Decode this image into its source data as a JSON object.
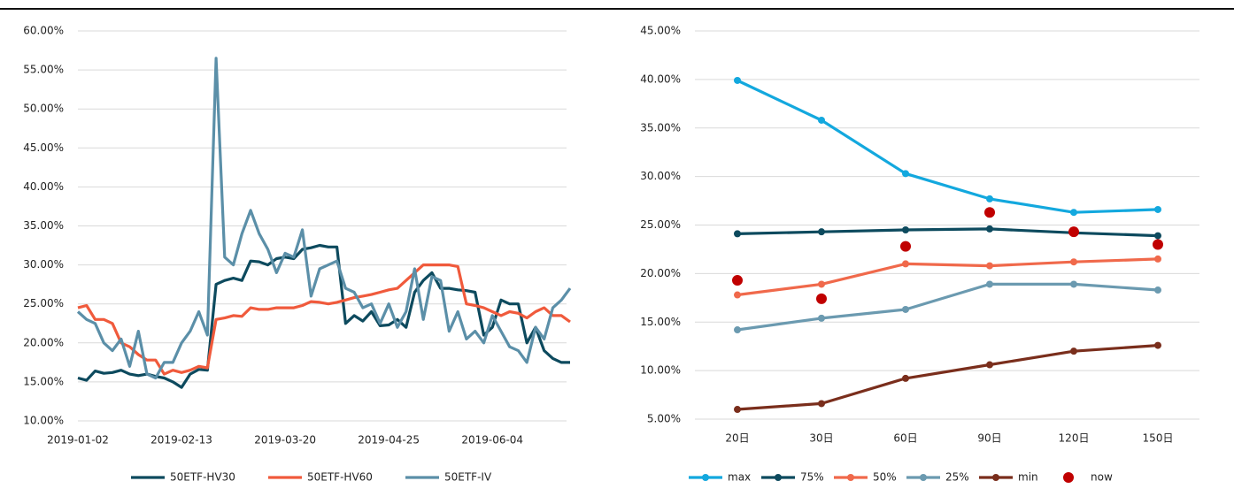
{
  "chart_data": [
    {
      "type": "line",
      "categories": [
        "2019-01-02",
        null,
        null,
        null,
        null,
        null,
        null,
        null,
        null,
        null,
        null,
        null,
        "2019-02-13",
        null,
        null,
        null,
        null,
        null,
        null,
        null,
        null,
        null,
        null,
        null,
        "2019-03-20",
        null,
        null,
        null,
        null,
        null,
        null,
        null,
        null,
        null,
        null,
        null,
        "2019-04-25",
        null,
        null,
        null,
        null,
        null,
        null,
        null,
        null,
        null,
        null,
        null,
        "2019-06-04",
        null,
        null,
        null,
        null,
        null,
        null,
        null,
        null,
        null
      ],
      "ylim": [
        10,
        60
      ],
      "yticks": [
        {
          "value": 10,
          "label": "10.00%"
        },
        {
          "value": 15,
          "label": "15.00%"
        },
        {
          "value": 20,
          "label": "20.00%"
        },
        {
          "value": 25,
          "label": "25.00%"
        },
        {
          "value": 30,
          "label": "30.00%"
        },
        {
          "value": 35,
          "label": "35.00%"
        },
        {
          "value": 40,
          "label": "40.00%"
        },
        {
          "value": 45,
          "label": "45.00%"
        },
        {
          "value": 50,
          "label": "50.00%"
        },
        {
          "value": 55,
          "label": "55.00%"
        },
        {
          "value": 60,
          "label": "60.00%"
        }
      ],
      "grid": true,
      "legend": "bottom",
      "series": [
        {
          "name": "50ETF-HV30",
          "color": "#0d4a5e",
          "values": [
            15.5,
            15.2,
            16.4,
            16.1,
            16.2,
            16.5,
            16.0,
            15.8,
            16.0,
            15.7,
            15.5,
            15.0,
            14.3,
            16.0,
            16.6,
            16.5,
            27.5,
            28.0,
            28.3,
            28.0,
            30.5,
            30.4,
            30.0,
            30.8,
            31.0,
            30.8,
            32.0,
            32.2,
            32.5,
            32.3,
            32.3,
            22.5,
            23.5,
            22.8,
            24.0,
            22.2,
            22.3,
            23.0,
            22.0,
            26.5,
            28.0,
            29.0,
            27.0,
            27.0,
            26.8,
            26.7,
            26.5,
            21.0,
            22.0,
            25.5,
            25.0,
            25.0,
            20.0,
            22.0,
            19.0,
            18.0,
            17.5,
            17.5
          ]
        },
        {
          "name": "50ETF-HV60",
          "color": "#f05a3c",
          "values": [
            24.5,
            24.8,
            23.0,
            23.0,
            22.5,
            20.0,
            19.5,
            18.5,
            17.8,
            17.8,
            16.0,
            16.5,
            16.2,
            16.5,
            17.0,
            16.8,
            23.0,
            23.2,
            23.5,
            23.4,
            24.5,
            24.3,
            24.3,
            24.5,
            24.5,
            24.5,
            24.8,
            25.3,
            25.2,
            25.0,
            25.2,
            25.5,
            25.8,
            26.0,
            26.2,
            26.5,
            26.8,
            27.0,
            28.0,
            29.0,
            30.0,
            30.0,
            30.0,
            30.0,
            29.8,
            25.0,
            24.8,
            24.5,
            24.0,
            23.5,
            24.0,
            23.8,
            23.2,
            24.0,
            24.5,
            23.5,
            23.5,
            22.7
          ]
        },
        {
          "name": "50ETF-IV",
          "color": "#5b8fa8",
          "values": [
            24.0,
            23.0,
            22.5,
            20.0,
            19.0,
            20.5,
            17.0,
            21.5,
            16.0,
            15.5,
            17.5,
            17.5,
            20.0,
            21.5,
            24.0,
            21.0,
            56.5,
            31.0,
            30.0,
            34.0,
            37.0,
            34.0,
            32.0,
            29.0,
            31.5,
            31.0,
            34.5,
            26.0,
            29.5,
            30.0,
            30.5,
            27.0,
            26.5,
            24.5,
            25.0,
            22.5,
            25.0,
            22.0,
            24.0,
            29.5,
            23.0,
            28.5,
            28.0,
            21.5,
            24.0,
            20.5,
            21.5,
            20.0,
            23.5,
            21.5,
            19.5,
            19.0,
            17.5,
            22.0,
            20.5,
            24.5,
            25.5,
            27.0
          ]
        }
      ]
    },
    {
      "type": "line",
      "categories": [
        "20日",
        "30日",
        "60日",
        "90日",
        "120日",
        "150日"
      ],
      "ylim": [
        5,
        45
      ],
      "yticks": [
        {
          "value": 5,
          "label": "5.00%"
        },
        {
          "value": 10,
          "label": "10.00%"
        },
        {
          "value": 15,
          "label": "15.00%"
        },
        {
          "value": 20,
          "label": "20.00%"
        },
        {
          "value": 25,
          "label": "25.00%"
        },
        {
          "value": 30,
          "label": "30.00%"
        },
        {
          "value": 35,
          "label": "35.00%"
        },
        {
          "value": 40,
          "label": "40.00%"
        },
        {
          "value": 45,
          "label": "45.00%"
        }
      ],
      "grid": true,
      "legend": "bottom",
      "markers": true,
      "series": [
        {
          "name": "max",
          "color": "#13a8de",
          "values": [
            39.9,
            35.8,
            30.3,
            27.7,
            26.3,
            26.6
          ]
        },
        {
          "name": "75%",
          "color": "#0d4a5e",
          "values": [
            24.1,
            24.3,
            24.5,
            24.6,
            24.2,
            23.9
          ]
        },
        {
          "name": "50%",
          "color": "#f0694b",
          "values": [
            17.8,
            18.9,
            21.0,
            20.8,
            21.2,
            21.5
          ]
        },
        {
          "name": "25%",
          "color": "#6b9ab0",
          "values": [
            14.2,
            15.4,
            16.3,
            18.9,
            18.9,
            18.3
          ]
        },
        {
          "name": "min",
          "color": "#7a2e1c",
          "values": [
            6.0,
            6.6,
            9.2,
            10.6,
            12.0,
            12.6
          ]
        },
        {
          "name": "now",
          "color": "#c00000",
          "line": false,
          "values": [
            19.3,
            17.4,
            22.8,
            26.3,
            24.3,
            23.0
          ]
        }
      ]
    }
  ]
}
